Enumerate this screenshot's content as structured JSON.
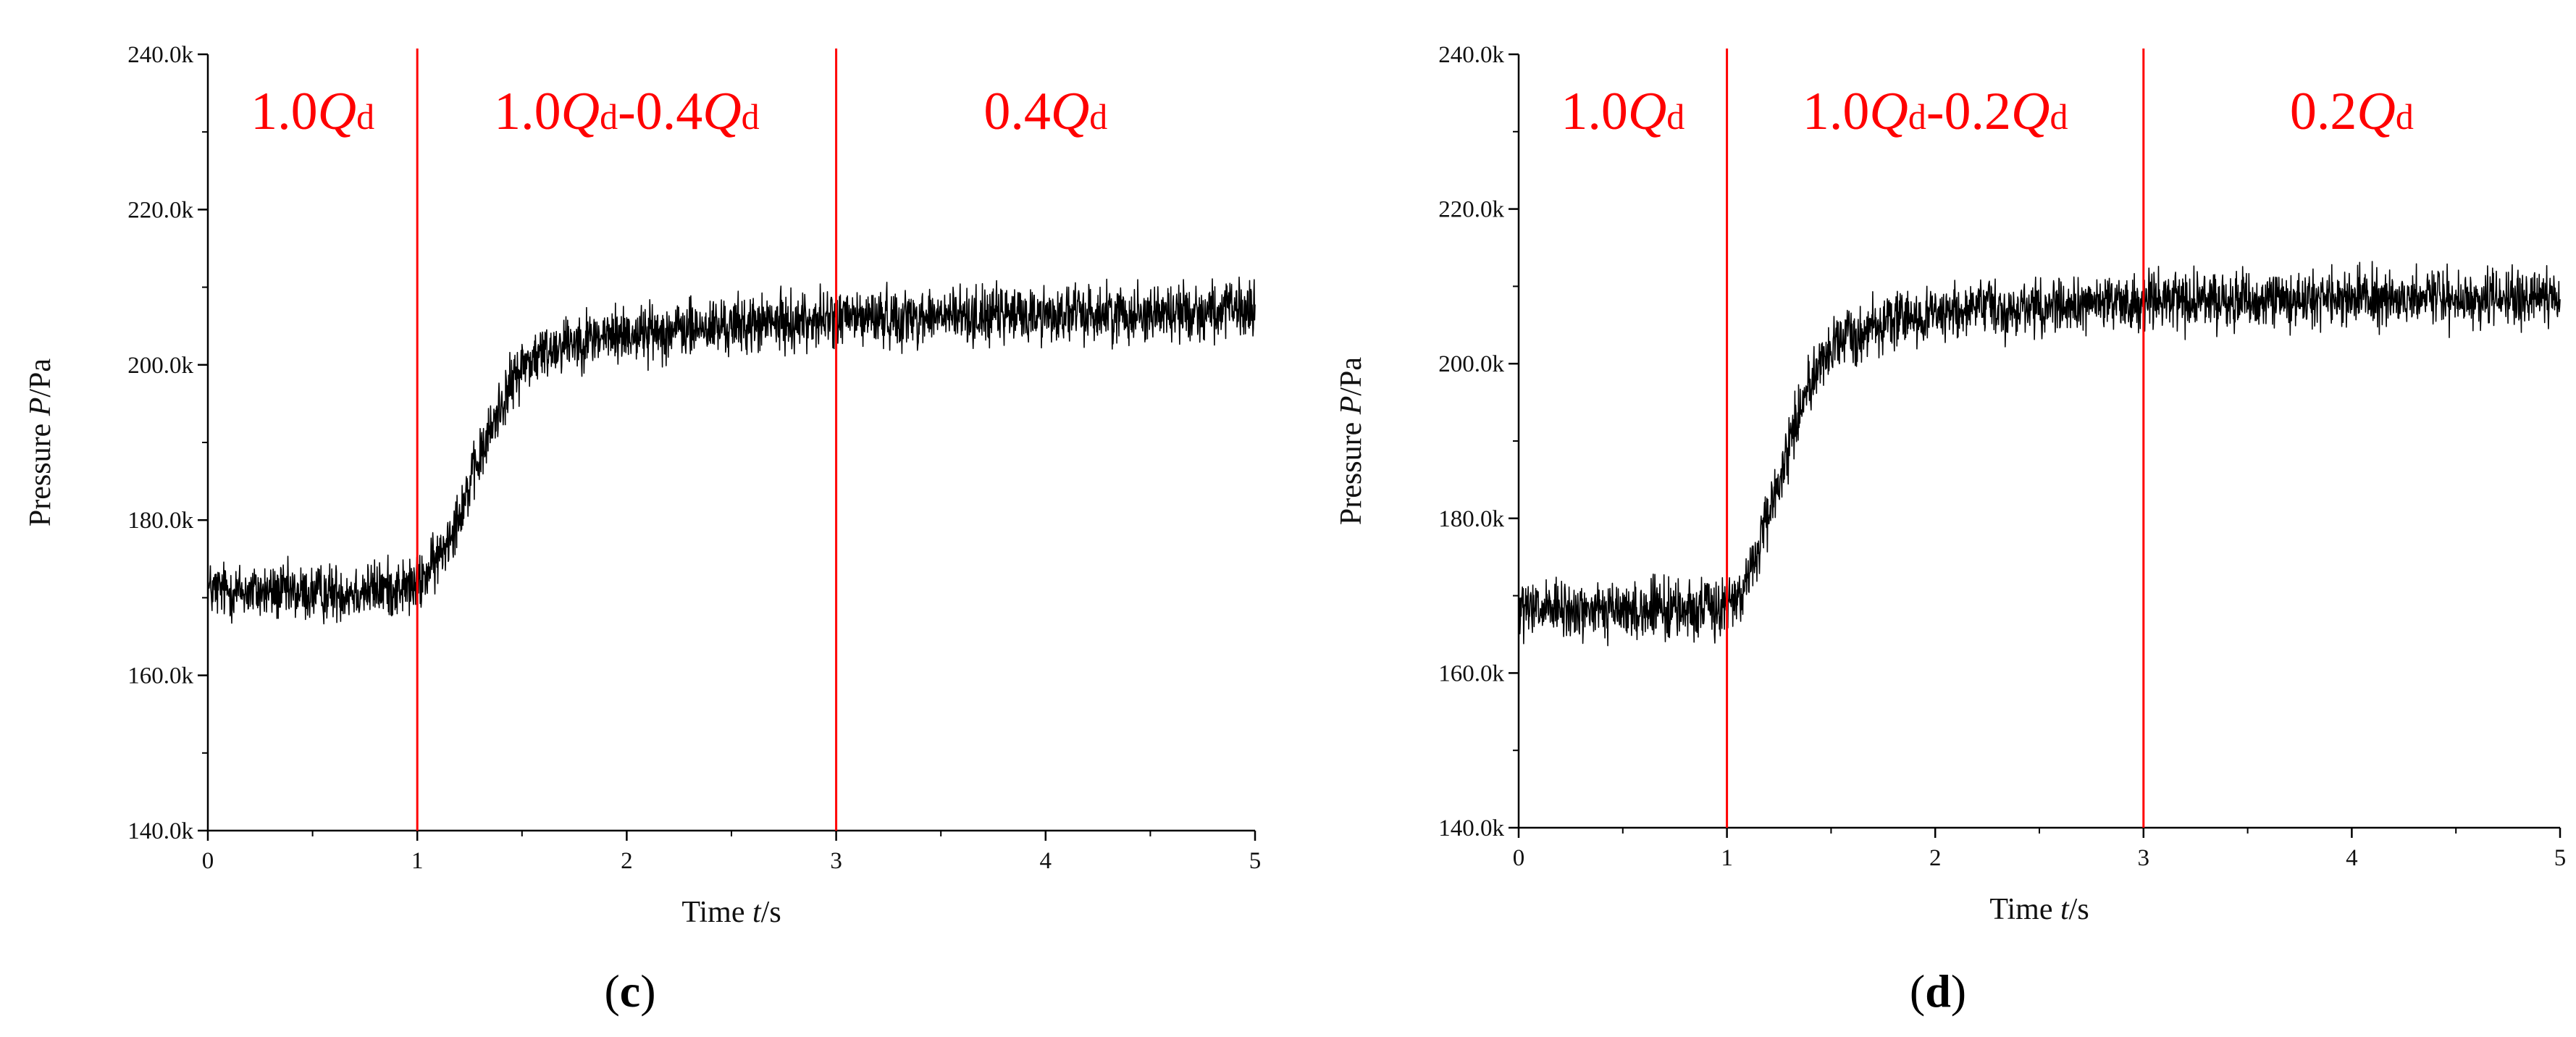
{
  "chart_data": [
    {
      "type": "line",
      "panel_label": "c",
      "xlabel_pre": "Time ",
      "xlabel_var": "t",
      "xlabel_unit": "/s",
      "ylabel_pre": "Pressure ",
      "ylabel_var": "P",
      "ylabel_unit": "/Pa",
      "xlim": [
        0,
        5
      ],
      "ylim": [
        140000,
        240000
      ],
      "xticks": [
        0,
        1,
        2,
        3,
        4,
        5
      ],
      "xtick_labels": [
        "0",
        "1",
        "2",
        "3",
        "4",
        "5"
      ],
      "yticks": [
        140000,
        160000,
        180000,
        200000,
        220000,
        240000
      ],
      "ytick_labels": [
        "140.0k",
        "160.0k",
        "180.0k",
        "200.0k",
        "220.0k",
        "240.0k"
      ],
      "vlines": [
        1,
        3
      ],
      "vline_color": "#ff0000",
      "line_color": "#000000",
      "phases": [
        {
          "x_center": 0.5,
          "parts": [
            {
              "t": "1.0"
            },
            {
              "t": "Q",
              "i": true
            },
            {
              "t": "d",
              "s": true
            }
          ]
        },
        {
          "x_center": 2.0,
          "parts": [
            {
              "t": "1.0"
            },
            {
              "t": "Q",
              "i": true
            },
            {
              "t": "d",
              "s": true
            },
            {
              "t": "-0.4"
            },
            {
              "t": "Q",
              "i": true
            },
            {
              "t": "d",
              "s": true
            }
          ]
        },
        {
          "x_center": 4.0,
          "parts": [
            {
              "t": "0.4"
            },
            {
              "t": "Q",
              "i": true
            },
            {
              "t": "d",
              "s": true
            }
          ]
        }
      ],
      "trend": [
        {
          "t": 0.0,
          "p": 171000
        },
        {
          "t": 0.5,
          "p": 170500
        },
        {
          "t": 1.0,
          "p": 171500
        },
        {
          "t": 1.1,
          "p": 175000
        },
        {
          "t": 1.2,
          "p": 181000
        },
        {
          "t": 1.3,
          "p": 188000
        },
        {
          "t": 1.4,
          "p": 195000
        },
        {
          "t": 1.5,
          "p": 200000
        },
        {
          "t": 1.7,
          "p": 203000
        },
        {
          "t": 2.0,
          "p": 204000
        },
        {
          "t": 2.5,
          "p": 205000
        },
        {
          "t": 3.0,
          "p": 206000
        },
        {
          "t": 4.0,
          "p": 206500
        },
        {
          "t": 5.0,
          "p": 207000
        }
      ],
      "noise_amplitude": 5500,
      "sample_interval": 0.002
    },
    {
      "type": "line",
      "panel_label": "d",
      "xlabel_pre": "Time ",
      "xlabel_var": "t",
      "xlabel_unit": "/s",
      "ylabel_pre": "Pressure ",
      "ylabel_var": "P",
      "ylabel_unit": "/Pa",
      "xlim": [
        0,
        5
      ],
      "ylim": [
        140000,
        240000
      ],
      "xticks": [
        0,
        1,
        2,
        3,
        4,
        5
      ],
      "xtick_labels": [
        "0",
        "1",
        "2",
        "3",
        "4",
        "5"
      ],
      "yticks": [
        140000,
        160000,
        180000,
        200000,
        220000,
        240000
      ],
      "ytick_labels": [
        "140.0k",
        "160.0k",
        "180.0k",
        "200.0k",
        "220.0k",
        "240.0k"
      ],
      "vlines": [
        1,
        3
      ],
      "vline_color": "#ff0000",
      "line_color": "#000000",
      "phases": [
        {
          "x_center": 0.5,
          "parts": [
            {
              "t": "1.0"
            },
            {
              "t": "Q",
              "i": true
            },
            {
              "t": "d",
              "s": true
            }
          ]
        },
        {
          "x_center": 2.0,
          "parts": [
            {
              "t": "1.0"
            },
            {
              "t": "Q",
              "i": true
            },
            {
              "t": "d",
              "s": true
            },
            {
              "t": "-0.2"
            },
            {
              "t": "Q",
              "i": true
            },
            {
              "t": "d",
              "s": true
            }
          ]
        },
        {
          "x_center": 4.0,
          "parts": [
            {
              "t": "0.2"
            },
            {
              "t": "Q",
              "i": true
            },
            {
              "t": "d",
              "s": true
            }
          ]
        }
      ],
      "trend": [
        {
          "t": 0.0,
          "p": 168000
        },
        {
          "t": 0.5,
          "p": 168000
        },
        {
          "t": 1.0,
          "p": 168500
        },
        {
          "t": 1.1,
          "p": 172000
        },
        {
          "t": 1.2,
          "p": 180000
        },
        {
          "t": 1.3,
          "p": 190000
        },
        {
          "t": 1.4,
          "p": 198000
        },
        {
          "t": 1.5,
          "p": 202000
        },
        {
          "t": 1.7,
          "p": 205000
        },
        {
          "t": 2.0,
          "p": 206500
        },
        {
          "t": 2.5,
          "p": 207500
        },
        {
          "t": 3.0,
          "p": 208000
        },
        {
          "t": 4.0,
          "p": 208500
        },
        {
          "t": 5.0,
          "p": 208500
        }
      ],
      "noise_amplitude": 5500,
      "sample_interval": 0.002
    }
  ]
}
